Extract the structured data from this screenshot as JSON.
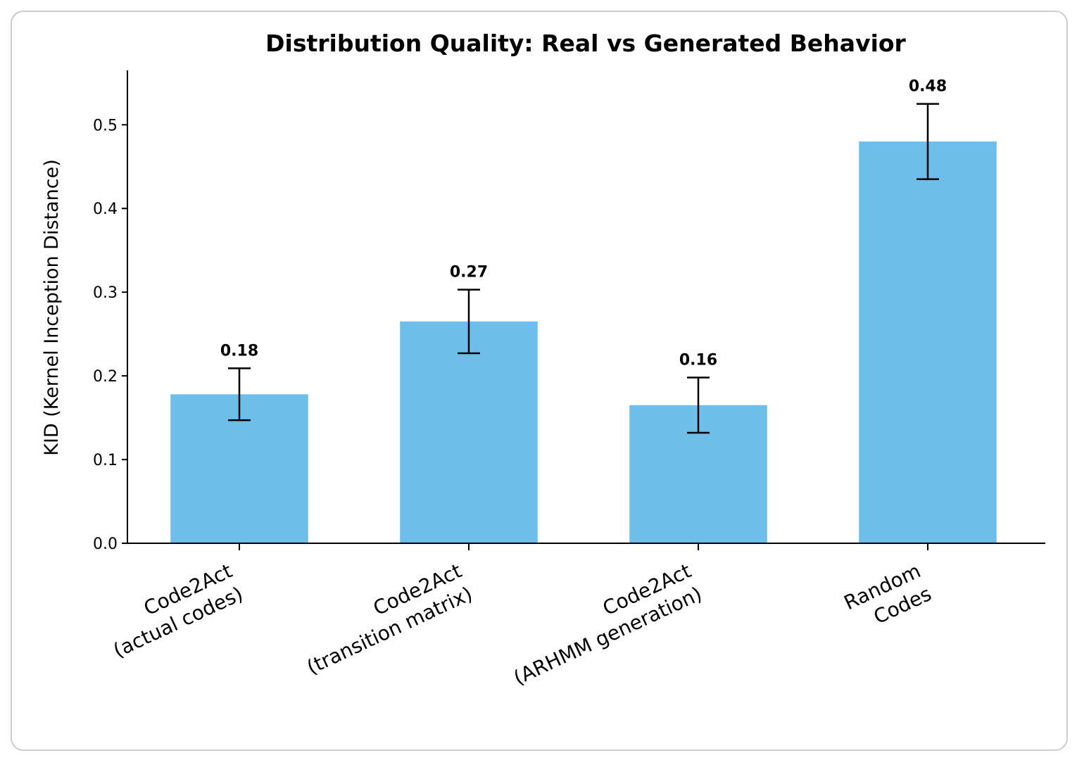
{
  "chart_data": {
    "type": "bar",
    "title": "Distribution Quality: Real vs Generated Behavior",
    "xlabel": "",
    "ylabel": "KID (Kernel Inception Distance)",
    "categories": [
      [
        "Code2Act",
        "(actual codes)"
      ],
      [
        "Code2Act",
        "(transition matrix)"
      ],
      [
        "Code2Act",
        "(ARHMM generation)"
      ],
      [
        "Random",
        "Codes"
      ]
    ],
    "values": [
      0.178,
      0.265,
      0.165,
      0.48
    ],
    "errors": [
      0.031,
      0.038,
      0.033,
      0.045
    ],
    "data_labels": [
      "0.18",
      "0.27",
      "0.16",
      "0.48"
    ],
    "ylim": [
      0,
      0.565
    ],
    "yticks": [
      0.0,
      0.1,
      0.2,
      0.3,
      0.4,
      0.5
    ],
    "ytick_labels": [
      "0.0",
      "0.1",
      "0.2",
      "0.3",
      "0.4",
      "0.5"
    ],
    "grid": false,
    "bar_color": "#6ebeea",
    "errorbar_color": "#000000"
  }
}
